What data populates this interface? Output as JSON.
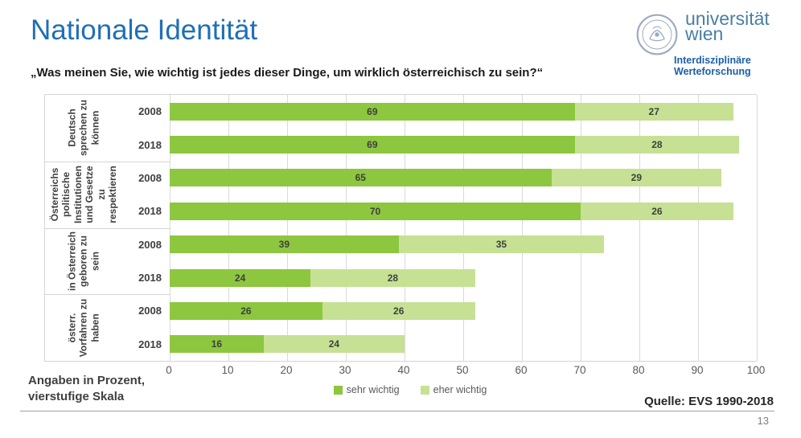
{
  "slide": {
    "title": "Nationale Identität",
    "question": "„Was meinen Sie, wie wichtig ist jedes dieser Dinge, um wirklich österreichisch zu sein?“",
    "footnote": "Angaben in Prozent,\nvierstufige Skala",
    "source": "Quelle: EVS 1990-2018",
    "page_number": "13"
  },
  "logo": {
    "wordmark_line1": "universität",
    "wordmark_line2": "wien",
    "sub_line1": "Interdisziplinäre",
    "sub_line2": "Werteforschung",
    "seal_color": "#9dabbf",
    "wordmark_color": "#4b7ea3",
    "sub_color": "#1b5ea9"
  },
  "chart_data": {
    "type": "bar",
    "orientation": "horizontal",
    "stacked": true,
    "xlim": [
      0,
      100
    ],
    "x_ticks": [
      0,
      10,
      20,
      30,
      40,
      50,
      60,
      70,
      80,
      90,
      100
    ],
    "grid": true,
    "legend_position": "bottom-center",
    "series": [
      {
        "name": "sehr wichtig",
        "color": "#8dc63f"
      },
      {
        "name": "eher wichtig",
        "color": "#c6e194"
      }
    ],
    "groups": [
      {
        "label": "Deutsch\nsprechen zu\nkönnen",
        "rows": [
          {
            "year": "2008",
            "values": [
              69,
              27
            ]
          },
          {
            "year": "2018",
            "values": [
              69,
              28
            ]
          }
        ]
      },
      {
        "label": "Österreichs\npolitische\nInstitutionen\nund Gesetze\nzu\nrespektieren",
        "rows": [
          {
            "year": "2008",
            "values": [
              65,
              29
            ]
          },
          {
            "year": "2018",
            "values": [
              70,
              26
            ]
          }
        ]
      },
      {
        "label": "in Österreich\ngeboren zu\nsein",
        "rows": [
          {
            "year": "2008",
            "values": [
              39,
              35
            ]
          },
          {
            "year": "2018",
            "values": [
              24,
              28
            ]
          }
        ]
      },
      {
        "label": "österr.\nVorfahren zu\nhaben",
        "rows": [
          {
            "year": "2008",
            "values": [
              26,
              26
            ]
          },
          {
            "year": "2018",
            "values": [
              16,
              24
            ]
          }
        ]
      }
    ]
  }
}
